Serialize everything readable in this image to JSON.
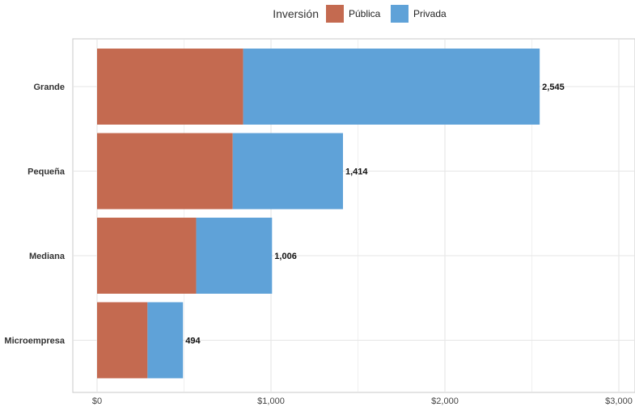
{
  "chart_data": {
    "type": "bar",
    "orientation": "horizontal",
    "stacked": true,
    "categories": [
      "Grande",
      "Pequeña",
      "Mediana",
      "Microempresa"
    ],
    "series": [
      {
        "name": "Pública",
        "color": "#c46a50",
        "values": [
          840,
          780,
          570,
          290
        ]
      },
      {
        "name": "Privada",
        "color": "#5fa2d8",
        "values": [
          1705,
          634,
          436,
          204
        ]
      }
    ],
    "totals": [
      2545,
      1414,
      1006,
      494
    ],
    "total_labels": [
      "2,545",
      "1,414",
      "1,006",
      "494"
    ],
    "xlim": [
      0,
      3000
    ],
    "x_ticks": [
      0,
      1000,
      2000,
      3000
    ],
    "x_tick_labels": [
      "$0",
      "$1,000",
      "$2,000",
      "$3,000"
    ],
    "legend": {
      "title": "Inversión",
      "placement": "top-center"
    },
    "grid": true
  }
}
